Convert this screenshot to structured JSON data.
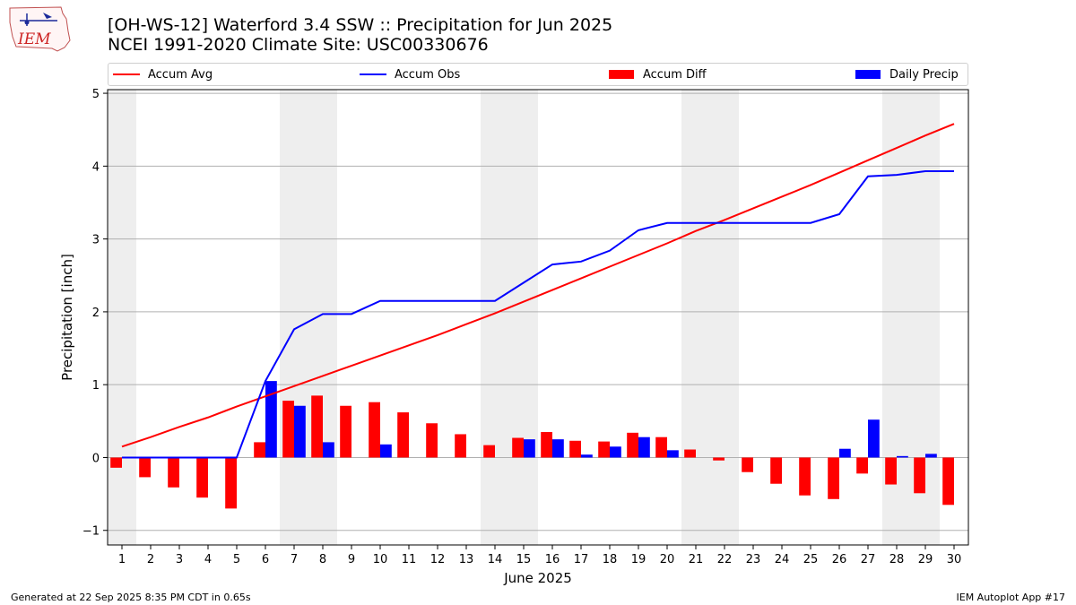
{
  "header": {
    "title_line1": "[OH-WS-12] Waterford 3.4 SSW :: Precipitation for Jun 2025",
    "title_line2": "NCEI 1991-2020 Climate Site: USC00330676"
  },
  "logo": {
    "text": "IEM",
    "icon": "iowa-map-weather-logo"
  },
  "footer": {
    "left": "Generated at 22 Sep 2025 8:35 PM CDT in 0.65s",
    "right": "IEM Autoplot App #17"
  },
  "colors": {
    "accum_avg": "#ff0000",
    "accum_obs": "#0000ff",
    "accum_diff": "#ff0000",
    "daily_precip": "#0000ff",
    "weekend_shade": "#eeeeee",
    "grid": "#b0b0b0"
  },
  "chart_data": {
    "type": "bar",
    "xlabel": "June 2025",
    "ylabel": "Precipitation [inch]",
    "ylim": [
      -1.2,
      5.05
    ],
    "yticks": [
      -1,
      0,
      1,
      2,
      3,
      4,
      5
    ],
    "grid": "horizontal",
    "legend_position": "top",
    "x": [
      1,
      2,
      3,
      4,
      5,
      6,
      7,
      8,
      9,
      10,
      11,
      12,
      13,
      14,
      15,
      16,
      17,
      18,
      19,
      20,
      21,
      22,
      23,
      24,
      25,
      26,
      27,
      28,
      29,
      30
    ],
    "shaded_days": [
      1,
      7,
      8,
      14,
      15,
      21,
      22,
      28,
      29
    ],
    "series": [
      {
        "name": "Accum Avg",
        "kind": "line",
        "values": [
          0.15,
          0.28,
          0.42,
          0.55,
          0.7,
          0.84,
          0.98,
          1.12,
          1.26,
          1.4,
          1.54,
          1.68,
          1.83,
          1.98,
          2.14,
          2.3,
          2.46,
          2.62,
          2.78,
          2.94,
          3.11,
          3.26,
          3.42,
          3.58,
          3.74,
          3.91,
          4.08,
          4.25,
          4.42,
          4.58
        ]
      },
      {
        "name": "Accum Obs",
        "kind": "line",
        "values": [
          0.0,
          0.0,
          0.0,
          0.0,
          0.0,
          1.05,
          1.76,
          1.97,
          1.97,
          2.15,
          2.15,
          2.15,
          2.15,
          2.15,
          2.4,
          2.65,
          2.69,
          2.84,
          3.12,
          3.22,
          3.22,
          3.22,
          3.22,
          3.22,
          3.22,
          3.34,
          3.86,
          3.88,
          3.93,
          3.93
        ]
      },
      {
        "name": "Accum Diff",
        "kind": "bar",
        "values": [
          -0.14,
          -0.27,
          -0.41,
          -0.55,
          -0.7,
          0.21,
          0.78,
          0.85,
          0.71,
          0.76,
          0.62,
          0.47,
          0.32,
          0.17,
          0.27,
          0.35,
          0.23,
          0.22,
          0.34,
          0.28,
          0.11,
          -0.04,
          -0.2,
          -0.36,
          -0.52,
          -0.57,
          -0.22,
          -0.37,
          -0.49,
          -0.65
        ]
      },
      {
        "name": "Daily Precip",
        "kind": "bar",
        "values": [
          0,
          0,
          0,
          0,
          0,
          1.05,
          0.71,
          0.21,
          0,
          0.18,
          0,
          0,
          0,
          0,
          0.25,
          0.25,
          0.04,
          0.15,
          0.28,
          0.1,
          0,
          0,
          0,
          0,
          0,
          0.12,
          0.52,
          0.02,
          0.05,
          0
        ]
      }
    ]
  }
}
